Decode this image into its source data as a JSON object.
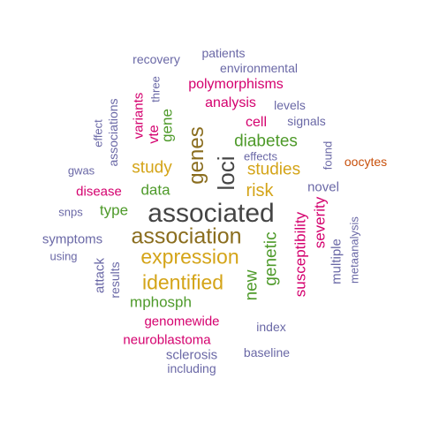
{
  "cloud": {
    "palette": {
      "darkgray": "#444444",
      "brown": "#8a6d1e",
      "gold": "#d4a418",
      "green": "#4e9a2a",
      "magenta": "#d4006e",
      "slate": "#6a68a6",
      "orange": "#c8500c"
    },
    "words": [
      {
        "text": "associated",
        "color": "darkgray",
        "weight": 1.0
      },
      {
        "text": "loci",
        "color": "darkgray",
        "weight": 0.82
      },
      {
        "text": "genes",
        "color": "brown",
        "weight": 0.68
      },
      {
        "text": "association",
        "color": "brown",
        "weight": 0.78
      },
      {
        "text": "expression",
        "color": "gold",
        "weight": 0.72
      },
      {
        "text": "identified",
        "color": "gold",
        "weight": 0.72
      },
      {
        "text": "study",
        "color": "gold",
        "weight": 0.56
      },
      {
        "text": "studies",
        "color": "gold",
        "weight": 0.55
      },
      {
        "text": "risk",
        "color": "gold",
        "weight": 0.56
      },
      {
        "text": "diabetes",
        "color": "green",
        "weight": 0.5
      },
      {
        "text": "data",
        "color": "green",
        "weight": 0.44
      },
      {
        "text": "type",
        "color": "green",
        "weight": 0.44
      },
      {
        "text": "mphosph",
        "color": "green",
        "weight": 0.46
      },
      {
        "text": "gene",
        "color": "green",
        "weight": 0.44
      },
      {
        "text": "genetic",
        "color": "green",
        "weight": 0.5
      },
      {
        "text": "new",
        "color": "green",
        "weight": 0.5
      },
      {
        "text": "polymorphisms",
        "color": "magenta",
        "weight": 0.42
      },
      {
        "text": "analysis",
        "color": "magenta",
        "weight": 0.42
      },
      {
        "text": "cell",
        "color": "magenta",
        "weight": 0.42
      },
      {
        "text": "variants",
        "color": "magenta",
        "weight": 0.4
      },
      {
        "text": "vte",
        "color": "magenta",
        "weight": 0.42
      },
      {
        "text": "disease",
        "color": "magenta",
        "weight": 0.4
      },
      {
        "text": "susceptibility",
        "color": "magenta",
        "weight": 0.44
      },
      {
        "text": "severity",
        "color": "magenta",
        "weight": 0.44
      },
      {
        "text": "genomewide",
        "color": "magenta",
        "weight": 0.38
      },
      {
        "text": "neuroblastoma",
        "color": "magenta",
        "weight": 0.38
      },
      {
        "text": "recovery",
        "color": "slate",
        "weight": 0.3
      },
      {
        "text": "patients",
        "color": "slate",
        "weight": 0.3
      },
      {
        "text": "environmental",
        "color": "slate",
        "weight": 0.3
      },
      {
        "text": "levels",
        "color": "slate",
        "weight": 0.3
      },
      {
        "text": "signals",
        "color": "slate",
        "weight": 0.3
      },
      {
        "text": "effects",
        "color": "slate",
        "weight": 0.28
      },
      {
        "text": "associations",
        "color": "slate",
        "weight": 0.3
      },
      {
        "text": "three",
        "color": "slate",
        "weight": 0.28
      },
      {
        "text": "effect",
        "color": "slate",
        "weight": 0.28
      },
      {
        "text": "gwas",
        "color": "slate",
        "weight": 0.28
      },
      {
        "text": "snps",
        "color": "slate",
        "weight": 0.28
      },
      {
        "text": "symptoms",
        "color": "slate",
        "weight": 0.32
      },
      {
        "text": "using",
        "color": "slate",
        "weight": 0.28
      },
      {
        "text": "attack",
        "color": "slate",
        "weight": 0.32
      },
      {
        "text": "results",
        "color": "slate",
        "weight": 0.3
      },
      {
        "text": "novel",
        "color": "slate",
        "weight": 0.34
      },
      {
        "text": "found",
        "color": "slate",
        "weight": 0.28
      },
      {
        "text": "multiple",
        "color": "slate",
        "weight": 0.32
      },
      {
        "text": "metaanalysis",
        "color": "slate",
        "weight": 0.28
      },
      {
        "text": "index",
        "color": "slate",
        "weight": 0.3
      },
      {
        "text": "baseline",
        "color": "slate",
        "weight": 0.3
      },
      {
        "text": "sclerosis",
        "color": "slate",
        "weight": 0.32
      },
      {
        "text": "including",
        "color": "slate",
        "weight": 0.3
      },
      {
        "text": "oocytes",
        "color": "orange",
        "weight": 0.3
      }
    ]
  }
}
